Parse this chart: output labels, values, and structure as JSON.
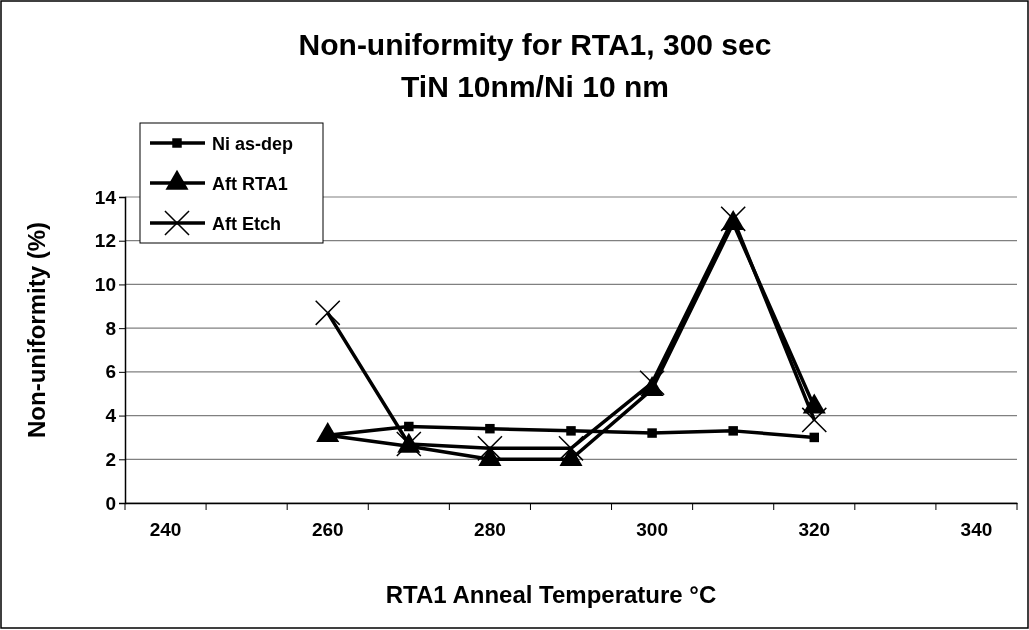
{
  "chart_data": {
    "type": "line",
    "title": "Non-uniformity for RTA1, 300 sec\nTiN 10nm/Ni 10 nm",
    "xlabel": "RTA1 Anneal Temperature °C",
    "ylabel": "Non-uniformity (%)",
    "categories": [
      "240",
      null,
      "260",
      null,
      "280",
      null,
      "300",
      null,
      "320",
      null,
      "340"
    ],
    "ylim": [
      0,
      14
    ],
    "yticks": [
      0,
      2,
      4,
      6,
      8,
      10,
      12,
      14
    ],
    "grid": "y",
    "legend": "top left",
    "line_style": "solid",
    "series": [
      {
        "name": "Ni as-dep",
        "color": "#000000",
        "marker": "square",
        "values": [
          null,
          null,
          3.1,
          3.5,
          3.4,
          3.3,
          3.2,
          3.3,
          3.0,
          null,
          null
        ]
      },
      {
        "name": "Aft RTA1",
        "color": "#000000",
        "marker": "triangle",
        "values": [
          null,
          null,
          3.1,
          2.6,
          2.0,
          2.0,
          5.2,
          12.8,
          4.4,
          null,
          null
        ]
      },
      {
        "name": "Aft Etch",
        "color": "#000000",
        "marker": "cross",
        "values": [
          null,
          null,
          8.7,
          2.7,
          2.5,
          2.5,
          5.5,
          13.0,
          3.8,
          null,
          null
        ]
      }
    ]
  }
}
